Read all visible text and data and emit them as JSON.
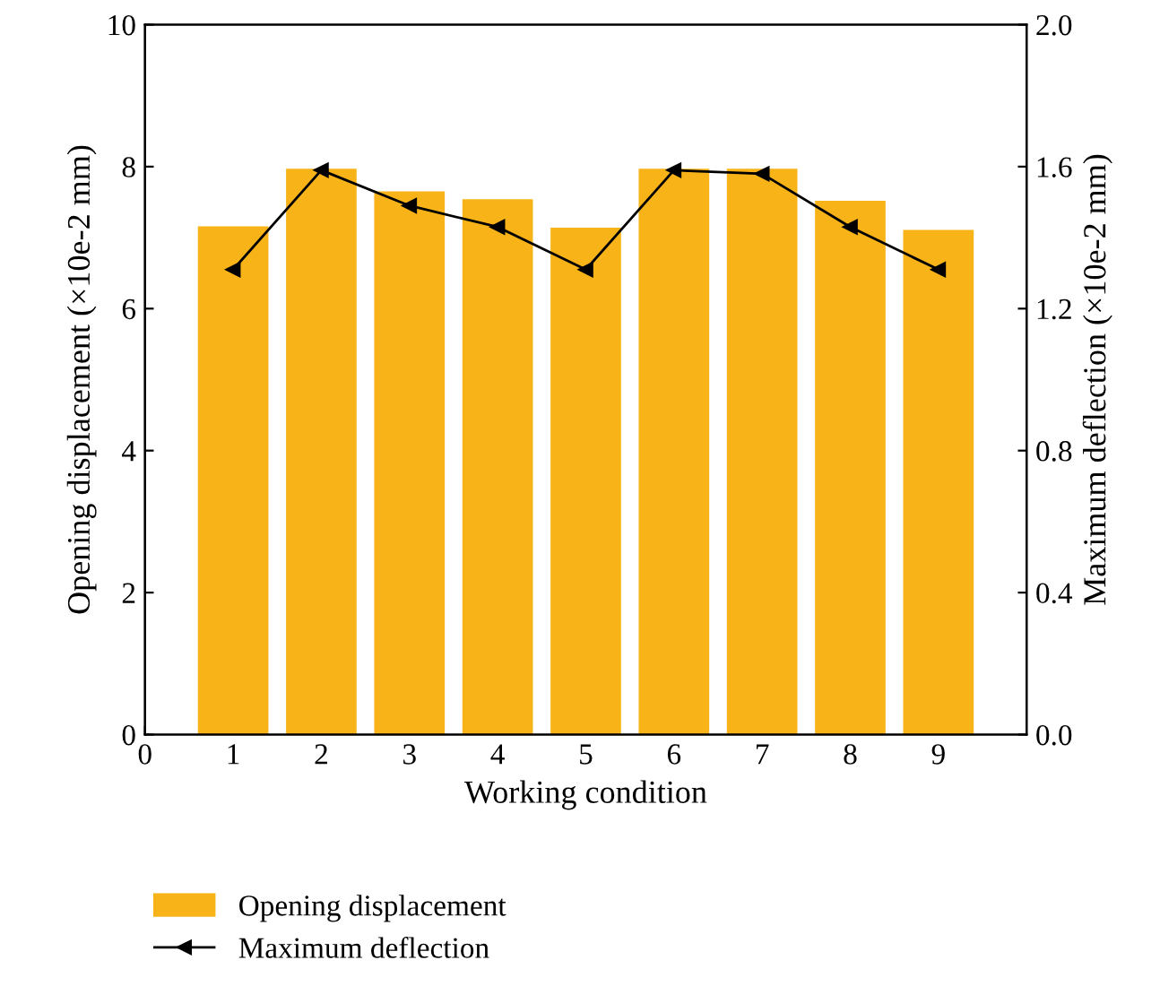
{
  "chart_data": {
    "type": "bar",
    "xlabel": "Working condition",
    "ylabel": "Opening displacement (×10e-2 mm)",
    "y2label": "Maximum deflection (×10e-2 mm)",
    "x": [
      1,
      2,
      3,
      4,
      5,
      6,
      7,
      8,
      9
    ],
    "xlim": [
      0,
      10
    ],
    "xticks": [
      0,
      1,
      2,
      3,
      4,
      5,
      6,
      7,
      8,
      9
    ],
    "ylim": [
      0,
      10
    ],
    "yticks": [
      0,
      2,
      4,
      6,
      8,
      10
    ],
    "y2lim": [
      0,
      2.0
    ],
    "y2ticks": [
      {
        "value": 0,
        "label": "0.0"
      },
      {
        "value": 0.4,
        "label": "0.4"
      },
      {
        "value": 0.8,
        "label": "0.8"
      },
      {
        "value": 1.2,
        "label": "1.2"
      },
      {
        "value": 1.6,
        "label": "1.6"
      },
      {
        "value": 2.0,
        "label": "2.0"
      }
    ],
    "legend": "bottom",
    "grid": false,
    "series": [
      {
        "name": "Opening displacement",
        "color": "#f7b318",
        "values": [
          7.16,
          7.97,
          7.65,
          7.54,
          7.14,
          7.97,
          7.97,
          7.52,
          7.11
        ]
      },
      {
        "name": "Maximum deflection",
        "type": "line",
        "axis": "y2",
        "color": "#000000",
        "marker": "triangle",
        "line_style": "solid",
        "values": [
          1.31,
          1.59,
          1.49,
          1.43,
          1.31,
          1.59,
          1.58,
          1.43,
          1.31
        ]
      }
    ]
  }
}
